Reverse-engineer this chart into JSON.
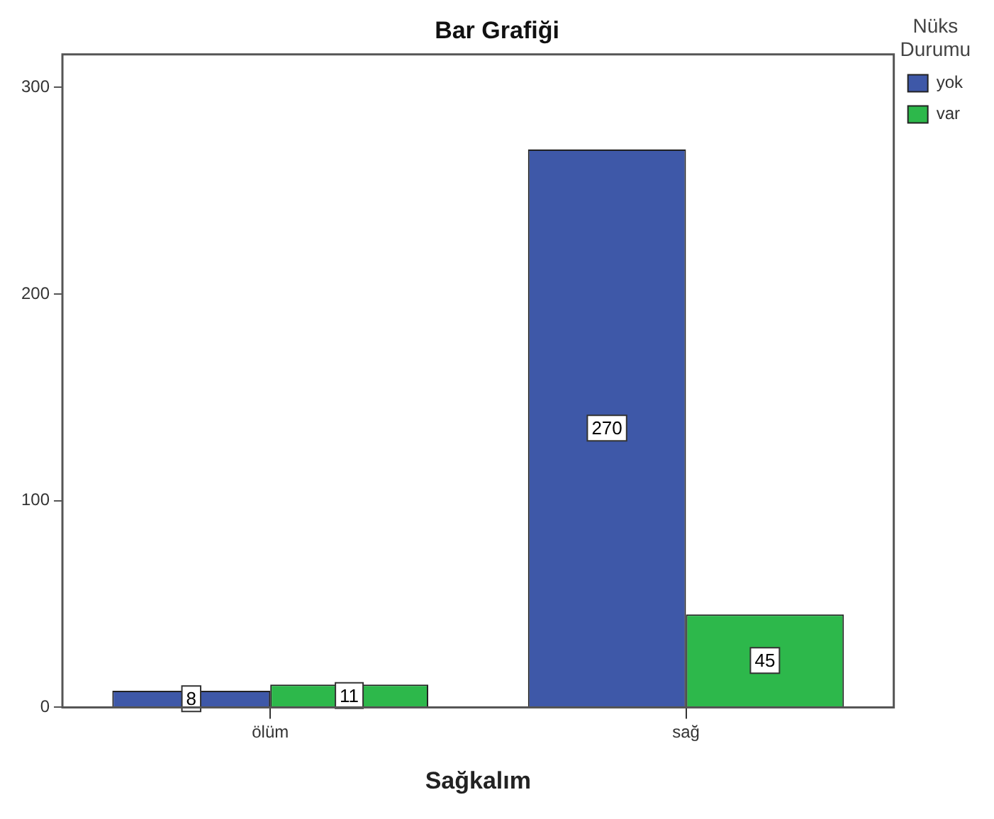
{
  "chart_data": {
    "type": "bar",
    "title": "Bar Grafiği",
    "xlabel": "Sağkalım",
    "legend_title": "Nüks Durumu",
    "categories": [
      "ölüm",
      "sağ"
    ],
    "series": [
      {
        "name": "yok",
        "color": "#3e58a8",
        "values": [
          8,
          270
        ]
      },
      {
        "name": "var",
        "color": "#2db84b",
        "values": [
          11,
          45
        ]
      }
    ],
    "ylim": [
      0,
      316
    ],
    "yticks": [
      0,
      100,
      200,
      300
    ],
    "grid": false,
    "legend": "top right",
    "data_labels": true
  }
}
